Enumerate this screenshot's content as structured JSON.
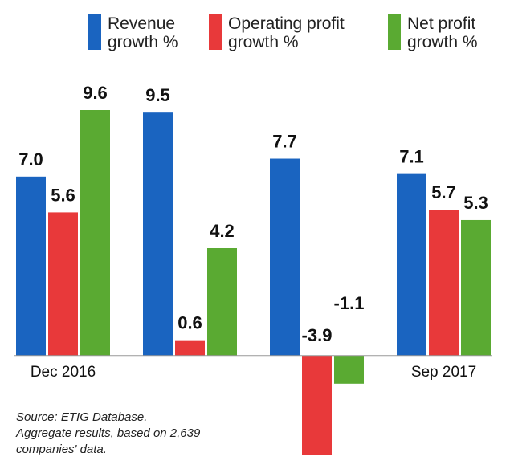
{
  "chart_data": {
    "type": "bar",
    "categories": [
      "Dec 2016",
      null,
      null,
      "Sep 2017"
    ],
    "series": [
      {
        "name": "Revenue growth %",
        "color": "#1a64c0",
        "values": [
          7.0,
          9.5,
          7.7,
          7.1
        ],
        "value_labels": [
          "7.0",
          "9.5",
          "7.7",
          "7.1"
        ]
      },
      {
        "name": "Operating profit growth %",
        "color": "#e8393a",
        "values": [
          5.6,
          0.6,
          -3.9,
          5.7
        ],
        "value_labels": [
          "5.6",
          "0.6",
          "-3.9",
          "5.7"
        ]
      },
      {
        "name": "Net profit growth %",
        "color": "#5aaa32",
        "values": [
          9.6,
          4.2,
          -1.1,
          5.3
        ],
        "value_labels": [
          "9.6",
          "4.2",
          "-1.1",
          "5.3"
        ]
      }
    ],
    "source": "Source: ETIG Database. Aggregate results, based on 2,639 companies' data."
  }
}
